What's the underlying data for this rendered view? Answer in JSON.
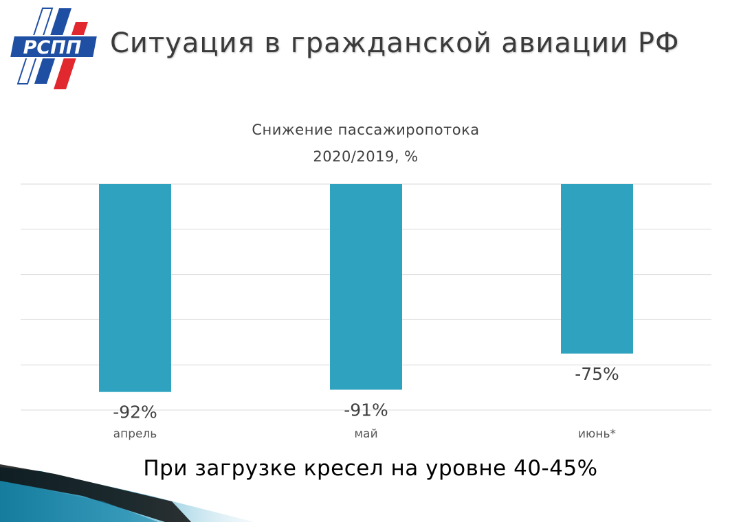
{
  "header": {
    "logo_text": "РСПП",
    "title": "Ситуация в гражданской авиации РФ"
  },
  "colors": {
    "bar": "#2ea2bf",
    "grid": "#d9d9d9",
    "title_text": "#3a3a3a",
    "logo_blue": "#1f4fa3",
    "logo_red": "#e0282e"
  },
  "chart_data": {
    "type": "bar",
    "title_line1": "Снижение пассажиропотока",
    "title_line2": "2020/2019, %",
    "categories": [
      "апрель",
      "май",
      "июнь*"
    ],
    "values": [
      -92,
      -91,
      -75
    ],
    "data_labels": [
      "-92%",
      "-91%",
      "-75%"
    ],
    "ylim": [
      -100,
      0
    ],
    "grid": true,
    "legend": "none"
  },
  "footnote": "При загрузке кресел на уровне 40-45%"
}
